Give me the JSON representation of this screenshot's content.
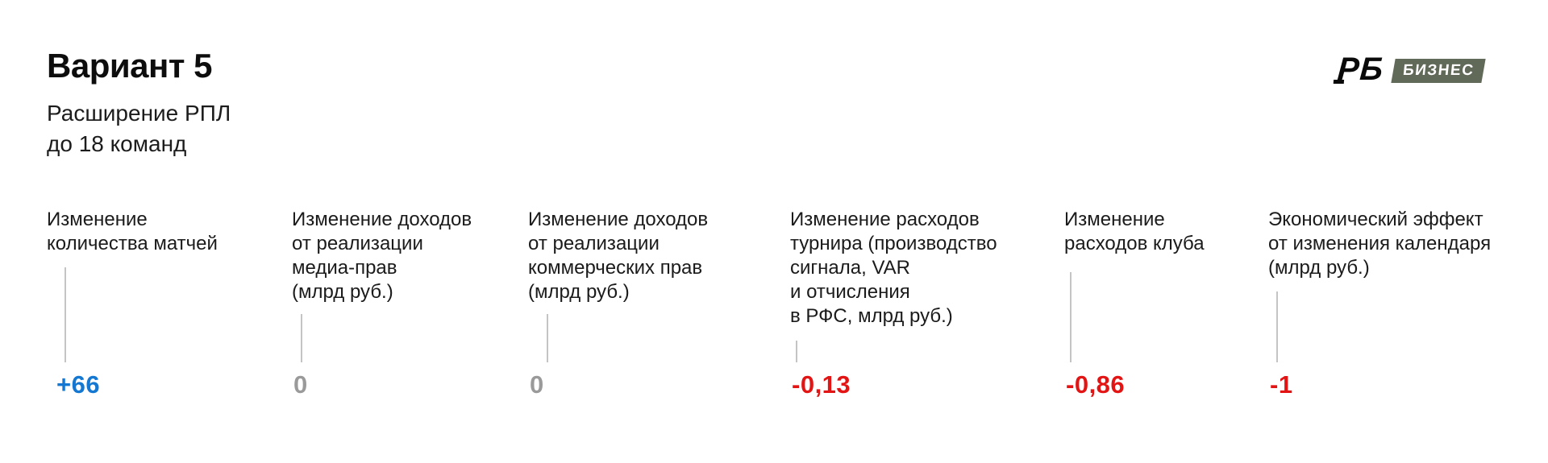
{
  "header": {
    "title": "Вариант 5",
    "subtitle_lines": [
      "Расширение РПЛ",
      "до 18 команд"
    ],
    "logo": {
      "monogram": "РБ",
      "badge": "БИЗНЕС"
    }
  },
  "colors": {
    "positive_value": "#1478d2",
    "neutral_value": "#9a9a9a",
    "negative_value": "#e31414",
    "connector_line": "#c4c4c4",
    "badge_background": "#616a58",
    "text": "#1b1b1b"
  },
  "columns": [
    {
      "label_lines": [
        "Изменение",
        "количества матчей"
      ],
      "value": "+66",
      "value_tone": "positive"
    },
    {
      "label_lines": [
        "Изменение доходов",
        "от реализации",
        "медиа-прав",
        "(млрд руб.)"
      ],
      "value": "0",
      "value_tone": "neutral"
    },
    {
      "label_lines": [
        "Изменение доходов",
        "от реализации",
        "коммерческих прав",
        "(млрд руб.)"
      ],
      "value": "0",
      "value_tone": "neutral"
    },
    {
      "label_lines": [
        "Изменение расходов",
        "турнира (производство",
        "сигнала, VAR",
        "и отчисления",
        "в РФС, млрд руб.)"
      ],
      "value": "-0,13",
      "value_tone": "negative"
    },
    {
      "label_lines": [
        "Изменение",
        "расходов клуба"
      ],
      "value": "-0,86",
      "value_tone": "negative"
    },
    {
      "label_lines": [
        "Экономический эффект",
        "от изменения календаря",
        "(млрд руб.)"
      ],
      "value": "-1",
      "value_tone": "negative"
    }
  ],
  "chart_data": {
    "type": "table",
    "title": "Вариант 5 — Расширение РПЛ до 18 команд",
    "categories": [
      "Изменение количества матчей",
      "Изменение доходов от реализации медиа-прав (млрд руб.)",
      "Изменение доходов от реализации коммерческих прав (млрд руб.)",
      "Изменение расходов турнира (производство сигнала, VAR и отчисления в РФС, млрд руб.)",
      "Изменение расходов клуба",
      "Экономический эффект от изменения календаря (млрд руб.)"
    ],
    "values": [
      66,
      0,
      0,
      -0.13,
      -0.86,
      -1
    ],
    "value_labels": [
      "+66",
      "0",
      "0",
      "-0,13",
      "-0,86",
      "-1"
    ]
  }
}
